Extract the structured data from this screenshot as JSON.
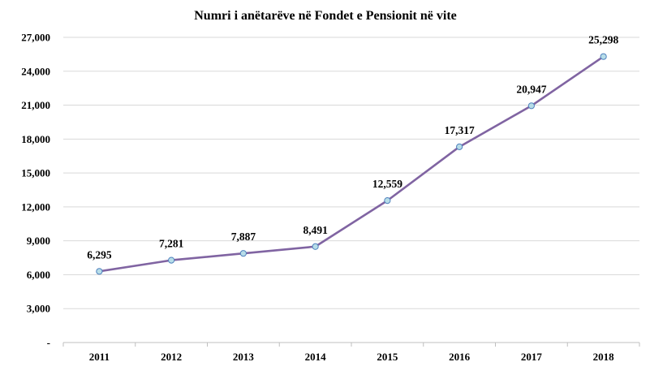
{
  "chart_data": {
    "type": "line",
    "title": "Numri  i anëtarëve në Fondet e Pensionit në vite",
    "xlabel": "",
    "ylabel": "",
    "categories": [
      "2011",
      "2012",
      "2013",
      "2014",
      "2015",
      "2016",
      "2017",
      "2018"
    ],
    "series": [
      {
        "values": [
          6295,
          7281,
          7887,
          8491,
          12559,
          17317,
          20947,
          25298
        ],
        "data_labels": [
          "6,295",
          "7,281",
          "7,887",
          "8,491",
          "12,559",
          "17,317",
          "20,947",
          "25,298"
        ]
      }
    ],
    "ylim": [
      0,
      27000
    ],
    "y_ticks": [
      0,
      3000,
      6000,
      9000,
      12000,
      15000,
      18000,
      21000,
      24000,
      27000
    ],
    "y_tick_labels": [
      "-",
      "3,000",
      "6,000",
      "9,000",
      "12,000",
      "15,000",
      "18,000",
      "21,000",
      "24,000",
      "27,000"
    ],
    "grid": "horizontal",
    "legend": "none",
    "colors": {
      "line": "#8064a2",
      "marker_fill": "#b7dde8",
      "marker_stroke": "#4f81bd",
      "grid": "#d9d9d9",
      "axis": "#bfbfbf"
    }
  }
}
